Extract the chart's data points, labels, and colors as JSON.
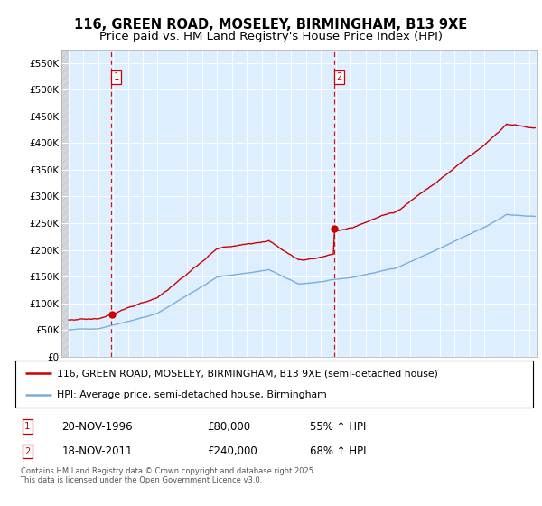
{
  "title_line1": "116, GREEN ROAD, MOSELEY, BIRMINGHAM, B13 9XE",
  "title_line2": "Price paid vs. HM Land Registry's House Price Index (HPI)",
  "legend_line1": "116, GREEN ROAD, MOSELEY, BIRMINGHAM, B13 9XE (semi-detached house)",
  "legend_line2": "HPI: Average price, semi-detached house, Birmingham",
  "annotation1_date": "20-NOV-1996",
  "annotation1_price": "£80,000",
  "annotation1_hpi": "55% ↑ HPI",
  "annotation1_year": 1996.88,
  "annotation1_value": 80000,
  "annotation2_date": "18-NOV-2011",
  "annotation2_price": "£240,000",
  "annotation2_hpi": "68% ↑ HPI",
  "annotation2_year": 2011.88,
  "annotation2_value": 240000,
  "property_color": "#cc0000",
  "hpi_color": "#7aaddc",
  "plot_bg_color": "#ddeeff",
  "grid_color": "#ffffff",
  "ylim_max": 575000,
  "ylabel_ticks": [
    0,
    50000,
    100000,
    150000,
    200000,
    250000,
    300000,
    350000,
    400000,
    450000,
    500000,
    550000
  ],
  "footer_text": "Contains HM Land Registry data © Crown copyright and database right 2025.\nThis data is licensed under the Open Government Licence v3.0.",
  "title_fontsize": 10.5,
  "subtitle_fontsize": 9.5
}
